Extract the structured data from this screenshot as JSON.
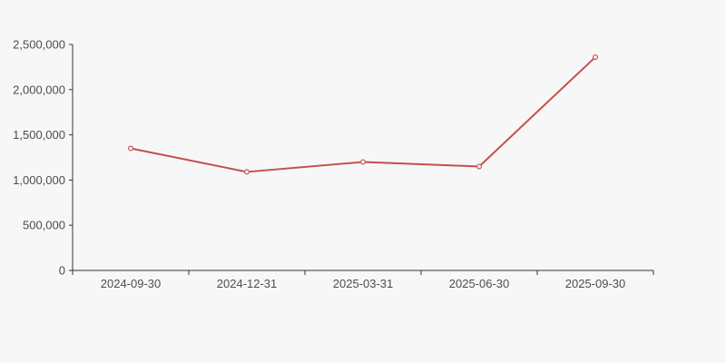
{
  "page": {
    "background_color": "#f7f7f7"
  },
  "chart_data": {
    "type": "line",
    "title": "",
    "xlabel": "",
    "ylabel": "",
    "categories": [
      "2024-09-30",
      "2024-12-31",
      "2025-03-31",
      "2025-06-30",
      "2025-09-30"
    ],
    "series": [
      {
        "name": "value",
        "values": [
          1350000,
          1090000,
          1200000,
          1150000,
          2360000
        ],
        "color": "#c3514e",
        "marker": "open-circle",
        "marker_fill": "#ffffff",
        "line_width": 2
      }
    ],
    "ylim": [
      0,
      2500000
    ],
    "y_ticks": [
      0,
      500000,
      1000000,
      1500000,
      2000000,
      2500000
    ],
    "y_tick_labels": [
      "0",
      "500,000",
      "1,000,000",
      "1,500,000",
      "2,000,000",
      "2,500,000"
    ],
    "grid": false,
    "legend": false,
    "axis_color": "#333333",
    "tick_label_color": "#4d4d4d"
  }
}
